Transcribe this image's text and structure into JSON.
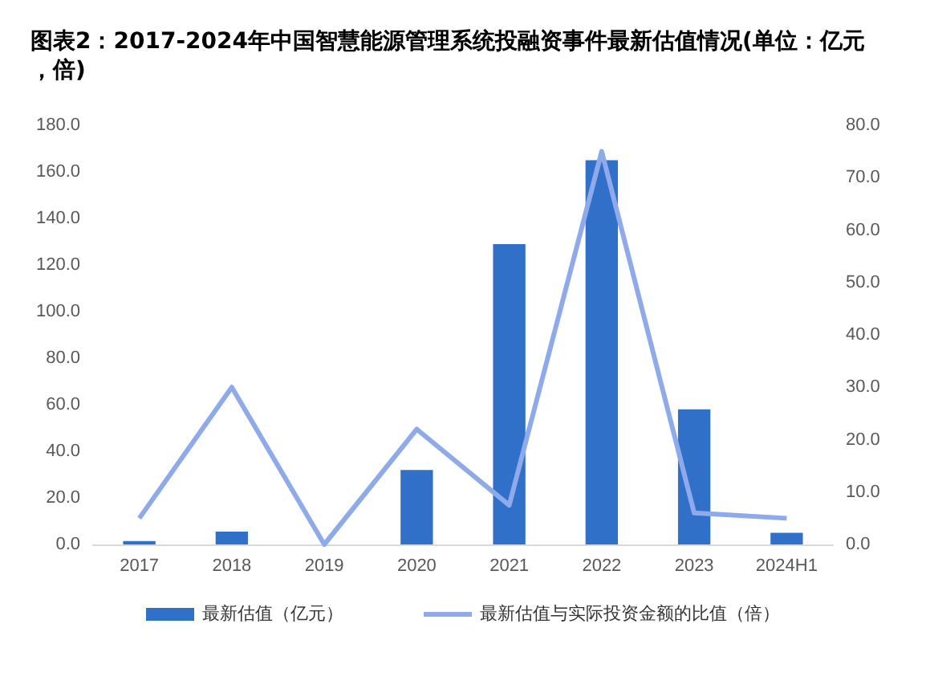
{
  "chart_data": {
    "type": "bar",
    "title": "图表2：2017-2024年中国智慧能源管理系统投融资事件最新估值情况(单位：亿元，倍)",
    "categories": [
      "2017",
      "2018",
      "2019",
      "2020",
      "2021",
      "2022",
      "2023",
      "2024H1"
    ],
    "series": [
      {
        "name": "最新估值（亿元）",
        "color": "#3070c8",
        "values": [
          1.5,
          5.5,
          null,
          32,
          129,
          165,
          58,
          5
        ]
      },
      {
        "name": "最新估值与实际投资金额的比值（倍）",
        "type": "line",
        "axis": "y2",
        "color": "#8eaaea",
        "marker": "none",
        "values": [
          5,
          30,
          0,
          22,
          7.5,
          75,
          6,
          5
        ]
      }
    ],
    "ylim": [
      0,
      180
    ],
    "yticks": [
      {
        "value": 0,
        "label": "0.0"
      },
      {
        "value": 20,
        "label": "20.0"
      },
      {
        "value": 40,
        "label": "40.0"
      },
      {
        "value": 60,
        "label": "60.0"
      },
      {
        "value": 80,
        "label": "80.0"
      },
      {
        "value": 100,
        "label": "100.0"
      },
      {
        "value": 120,
        "label": "120.0"
      },
      {
        "value": 140,
        "label": "140.0"
      },
      {
        "value": 160,
        "label": "160.0"
      },
      {
        "value": 180,
        "label": "180.0"
      }
    ],
    "y2lim": [
      0,
      80
    ],
    "y2ticks": [
      {
        "value": 0,
        "label": "0.0"
      },
      {
        "value": 10,
        "label": "10.0"
      },
      {
        "value": 20,
        "label": "20.0"
      },
      {
        "value": 30,
        "label": "30.0"
      },
      {
        "value": 40,
        "label": "40.0"
      },
      {
        "value": 50,
        "label": "50.0"
      },
      {
        "value": 60,
        "label": "60.0"
      },
      {
        "value": 70,
        "label": "70.0"
      },
      {
        "value": 80,
        "label": "80.0"
      }
    ],
    "grid": false,
    "legend": "bottom"
  }
}
